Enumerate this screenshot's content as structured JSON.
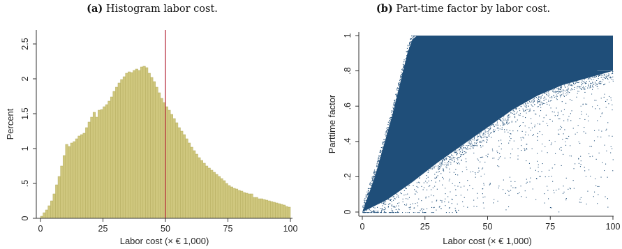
{
  "panels": [
    {
      "caption_tag": "(a)",
      "caption_text": " Histogram labor cost."
    },
    {
      "caption_tag": "(b)",
      "caption_text": " Part-time factor by labor cost."
    }
  ],
  "chart_data": [
    {
      "type": "bar",
      "subtype": "histogram",
      "xlabel": "Labor cost (× € 1,000)",
      "ylabel": "Percent",
      "xlim": [
        0,
        100
      ],
      "ylim": [
        0,
        2.7
      ],
      "x_ticks": [
        "0",
        "25",
        "50",
        "75",
        "100"
      ],
      "y_ticks": [
        "0",
        ".5",
        "1",
        "1.5",
        "2",
        "2.5"
      ],
      "bin_width": 1,
      "bar_color": "#cfc77e",
      "bar_edge_color": "#b5ad5f",
      "reference_line": {
        "x": 50,
        "color": "#b22234"
      },
      "values": [
        0.03,
        0.08,
        0.12,
        0.18,
        0.25,
        0.35,
        0.48,
        0.6,
        0.75,
        0.9,
        1.06,
        1.03,
        1.08,
        1.1,
        1.14,
        1.18,
        1.2,
        1.22,
        1.3,
        1.38,
        1.45,
        1.52,
        1.45,
        1.55,
        1.56,
        1.6,
        1.63,
        1.68,
        1.74,
        1.82,
        1.88,
        1.94,
        1.99,
        2.03,
        2.08,
        2.1,
        2.09,
        2.12,
        2.14,
        2.12,
        2.17,
        2.18,
        2.16,
        2.08,
        2.02,
        1.96,
        1.88,
        1.8,
        1.72,
        1.66,
        1.6,
        1.55,
        1.49,
        1.43,
        1.37,
        1.3,
        1.25,
        1.2,
        1.14,
        1.08,
        1.02,
        0.97,
        0.92,
        0.87,
        0.83,
        0.79,
        0.75,
        0.72,
        0.69,
        0.66,
        0.63,
        0.6,
        0.57,
        0.54,
        0.5,
        0.47,
        0.45,
        0.43,
        0.42,
        0.4,
        0.39,
        0.37,
        0.36,
        0.35,
        0.35,
        0.3,
        0.3,
        0.28,
        0.28,
        0.27,
        0.26,
        0.25,
        0.24,
        0.23,
        0.22,
        0.21,
        0.2,
        0.19,
        0.17,
        0.16
      ]
    },
    {
      "type": "scatter",
      "xlabel": "Labor cost (× € 1,000)",
      "ylabel": "Parttime factor",
      "xlim": [
        0,
        100
      ],
      "ylim": [
        0,
        1
      ],
      "x_ticks": [
        "0",
        "25",
        "50",
        "75",
        "100"
      ],
      "y_ticks": [
        "0",
        ".2",
        ".4",
        ".6",
        ".8",
        "1"
      ],
      "point_color": "#1f4e79",
      "dense_region": {
        "upper_bound_points": [
          [
            0,
            0
          ],
          [
            5,
            0.2
          ],
          [
            12,
            0.55
          ],
          [
            18,
            0.9
          ],
          [
            20,
            0.98
          ],
          [
            22,
            1
          ],
          [
            100,
            1
          ]
        ],
        "lower_bound_points": [
          [
            0,
            0
          ],
          [
            10,
            0.07
          ],
          [
            20,
            0.17
          ],
          [
            30,
            0.28
          ],
          [
            40,
            0.38
          ],
          [
            50,
            0.48
          ],
          [
            60,
            0.58
          ],
          [
            70,
            0.66
          ],
          [
            80,
            0.72
          ],
          [
            90,
            0.76
          ],
          [
            100,
            0.8
          ]
        ]
      },
      "visible_bands_y": [
        1,
        0.97,
        0.95,
        0.92,
        0.9,
        0.88,
        0.85,
        0.8,
        0.75,
        0.7,
        0.67,
        0.6,
        0.5,
        0.4
      ]
    }
  ]
}
